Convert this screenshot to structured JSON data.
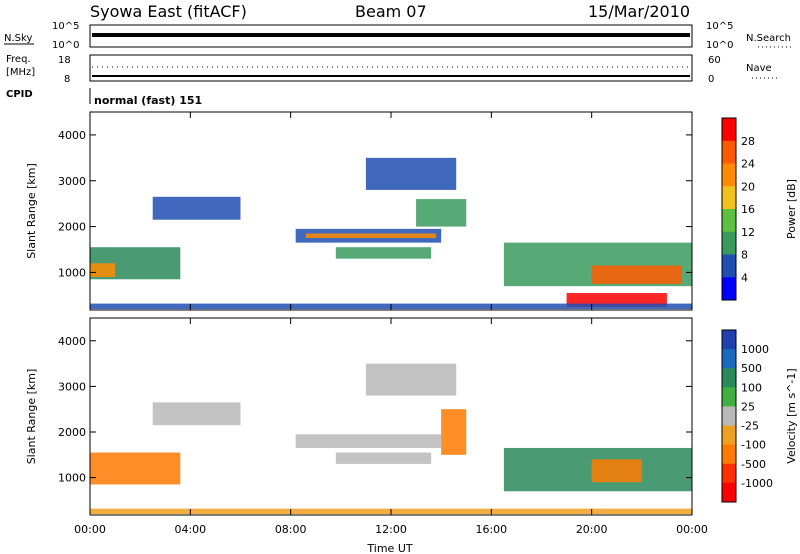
{
  "header": {
    "station": "Syowa East (fitACF)",
    "beam": "Beam 07",
    "date": "15/Mar/2010"
  },
  "strips": {
    "nsky_label": "N.Sky",
    "nsearch_label": "N.Search",
    "noise_ticks": [
      "10^5",
      "10^0"
    ],
    "freq_label_1": "Freq.",
    "freq_label_2": "[MHz]",
    "freq_ticks": [
      "18",
      "8"
    ],
    "nave_label": "Nave",
    "nave_ticks": [
      "60",
      "0"
    ],
    "cpid_label": "CPID",
    "cpid_value": "normal (fast) 151"
  },
  "colors": {
    "power": [
      "#0000ff",
      "#1f4fb3",
      "#3a9a5e",
      "#5cc040",
      "#f2c21a",
      "#ff8c00",
      "#ff5a00",
      "#ff0000"
    ],
    "velocity": [
      "#2040b0",
      "#1a6ac0",
      "#2a8a5a",
      "#40b040",
      "#b8b8b8",
      "#f0a020",
      "#ff7a00",
      "#ff3000",
      "#ff0000"
    ]
  },
  "chart_data": [
    {
      "type": "heatmap",
      "name": "power",
      "ylabel": "Slant Range [km]",
      "ylim": [
        180,
        4500
      ],
      "yticks": [
        "1000",
        "2000",
        "3000",
        "4000"
      ],
      "colorbar_label": "Power [dB]",
      "colorbar_ticks": [
        "4",
        "8",
        "12",
        "16",
        "20",
        "24",
        "28"
      ],
      "regions": [
        {
          "t0": 0.0,
          "t1": 3.6,
          "r0": 850,
          "r1": 1550,
          "c": "#2a8a5a"
        },
        {
          "t0": 0.0,
          "t1": 1.0,
          "r0": 900,
          "r1": 1200,
          "c": "#ff8c00"
        },
        {
          "t0": 2.5,
          "t1": 6.0,
          "r0": 2150,
          "r1": 2650,
          "c": "#1f4fb3"
        },
        {
          "t0": 8.2,
          "t1": 14.0,
          "r0": 1650,
          "r1": 1950,
          "c": "#1f4fb3"
        },
        {
          "t0": 8.6,
          "t1": 13.8,
          "r0": 1750,
          "r1": 1850,
          "c": "#ff8c00"
        },
        {
          "t0": 9.8,
          "t1": 13.6,
          "r0": 1300,
          "r1": 1550,
          "c": "#3a9a5e"
        },
        {
          "t0": 11.0,
          "t1": 14.6,
          "r0": 2800,
          "r1": 3500,
          "c": "#1f4fb3"
        },
        {
          "t0": 13.0,
          "t1": 15.0,
          "r0": 2000,
          "r1": 2600,
          "c": "#3a9a5e"
        },
        {
          "t0": 16.5,
          "t1": 24.0,
          "r0": 700,
          "r1": 1650,
          "c": "#3a9a5e"
        },
        {
          "t0": 20.0,
          "t1": 23.6,
          "r0": 750,
          "r1": 1150,
          "c": "#ff5a00"
        },
        {
          "t0": 19.0,
          "t1": 23.0,
          "r0": 250,
          "r1": 550,
          "c": "#ff0000"
        },
        {
          "t0": 0.0,
          "t1": 24.0,
          "r0": 200,
          "r1": 320,
          "c": "#1f4fb3"
        }
      ]
    },
    {
      "type": "heatmap",
      "name": "velocity",
      "ylabel": "Slant Range [km]",
      "xlabel": "Time UT",
      "ylim": [
        180,
        4500
      ],
      "yticks": [
        "1000",
        "2000",
        "3000",
        "4000"
      ],
      "xticks": [
        "00:00",
        "04:00",
        "08:00",
        "12:00",
        "16:00",
        "20:00",
        "00:00"
      ],
      "colorbar_label": "Velocity [m s^-1]",
      "colorbar_ticks": [
        "1000",
        "500",
        "100",
        "25",
        "-25",
        "-100",
        "-500",
        "-1000"
      ],
      "regions": [
        {
          "t0": 0.0,
          "t1": 3.6,
          "r0": 850,
          "r1": 1550,
          "c": "#ff7a00"
        },
        {
          "t0": 2.5,
          "t1": 6.0,
          "r0": 2150,
          "r1": 2650,
          "c": "#b8b8b8"
        },
        {
          "t0": 8.2,
          "t1": 14.0,
          "r0": 1650,
          "r1": 1950,
          "c": "#b8b8b8"
        },
        {
          "t0": 9.8,
          "t1": 13.6,
          "r0": 1300,
          "r1": 1550,
          "c": "#b8b8b8"
        },
        {
          "t0": 11.0,
          "t1": 14.6,
          "r0": 2800,
          "r1": 3500,
          "c": "#b8b8b8"
        },
        {
          "t0": 14.0,
          "t1": 15.0,
          "r0": 1500,
          "r1": 2500,
          "c": "#ff7a00"
        },
        {
          "t0": 16.5,
          "t1": 24.0,
          "r0": 700,
          "r1": 1650,
          "c": "#2a8a5a"
        },
        {
          "t0": 20.0,
          "t1": 22.0,
          "r0": 900,
          "r1": 1400,
          "c": "#ff7a00"
        },
        {
          "t0": 0.0,
          "t1": 24.0,
          "r0": 200,
          "r1": 320,
          "c": "#f0a020"
        }
      ]
    }
  ]
}
